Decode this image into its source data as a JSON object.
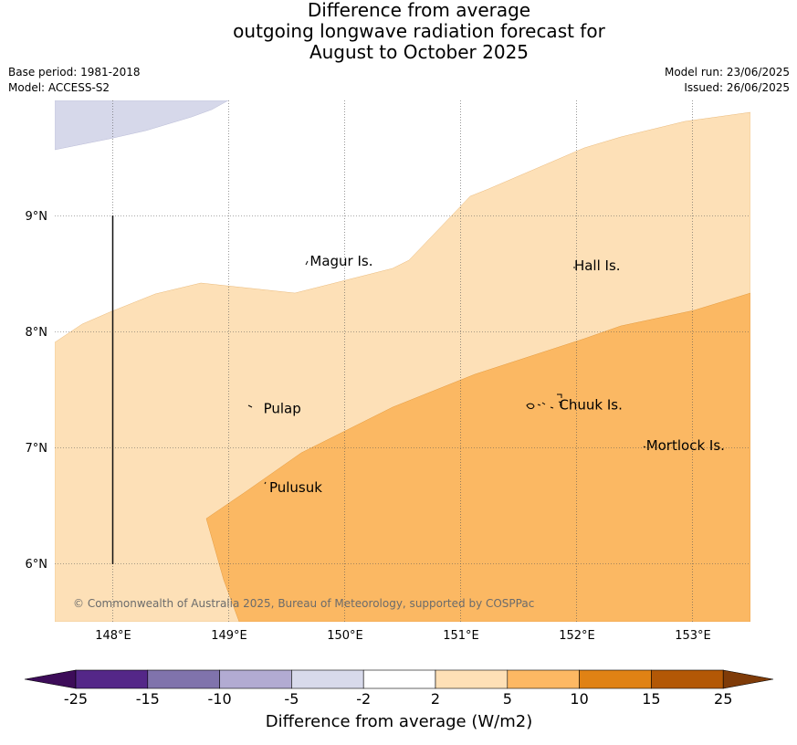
{
  "title": {
    "line1": "Difference from average",
    "line2": "outgoing longwave radiation forecast for",
    "line3": "August to October 2025"
  },
  "meta": {
    "base_period": "Base period: 1981-2018",
    "model": "Model: ACCESS-S2",
    "model_run": "Model run: 23/06/2025",
    "issued": "Issued: 26/06/2025"
  },
  "map": {
    "lon_ticks": [
      "148°E",
      "149°E",
      "150°E",
      "151°E",
      "152°E",
      "153°E"
    ],
    "lat_ticks": [
      "9°N",
      "8°N",
      "7°N",
      "6°N"
    ],
    "places": [
      {
        "name": "Magur Is.",
        "lon": 149.7,
        "lat": 8.57
      },
      {
        "name": "Hall Is.",
        "lon": 151.98,
        "lat": 8.53
      },
      {
        "name": "Pulap",
        "lon": 149.3,
        "lat": 7.3
      },
      {
        "name": "Chuuk Is.",
        "lon": 151.85,
        "lat": 7.33
      },
      {
        "name": "Mortlock Is.",
        "lon": 152.6,
        "lat": 6.98
      },
      {
        "name": "Pulusuk",
        "lon": 149.35,
        "lat": 6.62
      }
    ],
    "copyright": "© Commonwealth of Australia 2025, Bureau of Meteorology, supported by COSPPac",
    "fill_colors": {
      "light_purple": "#d6d8ea",
      "light_orange": "#fde0b7",
      "mid_orange": "#fbb863"
    }
  },
  "colorbar": {
    "title": "Difference from average (W/m2)",
    "labels": [
      "-25",
      "-15",
      "-10",
      "-5",
      "-2",
      "2",
      "5",
      "10",
      "15",
      "25"
    ],
    "colors": [
      "#3d0c59",
      "#542788",
      "#8073ac",
      "#b2abd2",
      "#d8daeb",
      "#ffffff",
      "#fee0b6",
      "#fdb863",
      "#e08214",
      "#b35806",
      "#7f3b08"
    ]
  }
}
